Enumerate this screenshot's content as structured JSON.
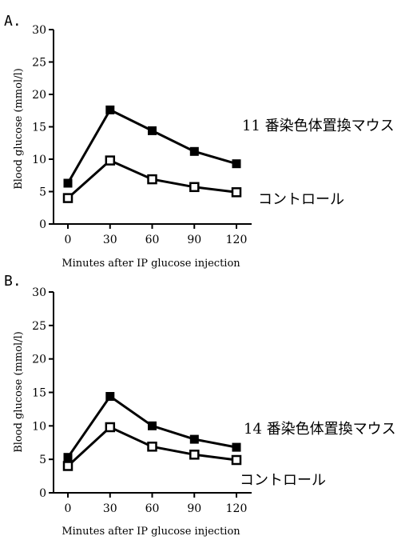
{
  "chart_data": [
    {
      "type": "line",
      "panel_label": "A.",
      "xlabel": "Minutes after IP glucose injection",
      "ylabel": "Blood glucose (mmol/l)",
      "x": [
        0,
        30,
        60,
        90,
        120
      ],
      "xticks": [
        "0",
        "30",
        "60",
        "90",
        "120"
      ],
      "ylim": [
        0,
        30
      ],
      "yticks": [
        "0",
        "5",
        "10",
        "15",
        "20",
        "25",
        "30"
      ],
      "grid": false,
      "series": [
        {
          "name": "11 番染色体置換マウス",
          "marker": "filled-square",
          "values": [
            6.3,
            17.6,
            14.4,
            11.2,
            9.3
          ]
        },
        {
          "name": "コントロール",
          "marker": "open-square",
          "values": [
            4.0,
            9.8,
            6.9,
            5.7,
            4.9
          ]
        }
      ]
    },
    {
      "type": "line",
      "panel_label": "B.",
      "xlabel": "Minutes after IP glucose injection",
      "ylabel": "Blood glucose (mmol/l)",
      "x": [
        0,
        30,
        60,
        90,
        120
      ],
      "xticks": [
        "0",
        "30",
        "60",
        "90",
        "120"
      ],
      "ylim": [
        0,
        30
      ],
      "yticks": [
        "0",
        "5",
        "10",
        "15",
        "20",
        "25",
        "30"
      ],
      "grid": false,
      "series": [
        {
          "name": "14 番染色体置換マウス",
          "marker": "filled-square",
          "values": [
            5.3,
            14.4,
            10.0,
            8.0,
            6.8
          ]
        },
        {
          "name": "コントロール",
          "marker": "open-square",
          "values": [
            4.0,
            9.8,
            6.9,
            5.7,
            4.9
          ]
        }
      ]
    }
  ]
}
